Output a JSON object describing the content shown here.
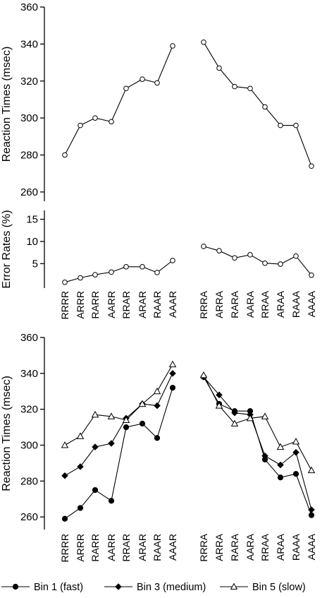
{
  "chart_data": [
    {
      "type": "line",
      "ylabel": "Reaction Times  (msec)",
      "ylim": [
        255,
        360
      ],
      "yticks": [
        260,
        280,
        300,
        320,
        340,
        360
      ],
      "categories": [
        "RRRR",
        "ARRR",
        "RARR",
        "AARR",
        "RRAR",
        "ARAR",
        "RAAR",
        "AAAR",
        "RRRA",
        "ARRA",
        "RARA",
        "AARA",
        "RRAA",
        "ARAA",
        "RAAA",
        "AAAA"
      ],
      "series": [
        {
          "marker": "open-circle",
          "values": [
            280,
            296,
            300,
            298,
            316,
            321,
            319,
            339,
            341,
            327,
            317,
            316,
            306,
            296,
            296,
            274
          ]
        }
      ]
    },
    {
      "type": "line",
      "ylabel": "Error Rates (%)",
      "ylim": [
        -0.5,
        17
      ],
      "yticks": [
        5,
        10,
        15
      ],
      "categories": [
        "RRRR",
        "ARRR",
        "RARR",
        "AARR",
        "RRAR",
        "ARAR",
        "RAAR",
        "AAAR",
        "RRRA",
        "ARRA",
        "RARA",
        "AARA",
        "RRAA",
        "ARAA",
        "RAAA",
        "AAAA"
      ],
      "series": [
        {
          "marker": "open-circle",
          "values": [
            0.8,
            1.8,
            2.5,
            3.1,
            4.3,
            4.3,
            3.0,
            5.7,
            8.9,
            7.9,
            6.3,
            7.0,
            5.1,
            4.9,
            6.7,
            2.4
          ]
        }
      ]
    },
    {
      "type": "line",
      "ylabel": "Reaction Times  (msec)",
      "ylim": [
        253,
        360
      ],
      "yticks": [
        260,
        280,
        300,
        320,
        340,
        360
      ],
      "categories": [
        "RRRR",
        "ARRR",
        "RARR",
        "AARR",
        "RRAR",
        "ARAR",
        "RAAR",
        "AAAR",
        "RRRA",
        "ARRA",
        "RARA",
        "AARA",
        "RRAA",
        "ARAA",
        "RAAA",
        "AAAA"
      ],
      "series": [
        {
          "name": "Bin 1 (fast)",
          "marker": "filled-circle",
          "values": [
            259,
            265,
            275,
            269,
            310,
            312,
            304,
            332,
            338,
            323,
            319,
            319,
            292,
            282,
            284,
            261
          ]
        },
        {
          "name": "Bin 3 (medium)",
          "marker": "filled-diamond",
          "values": [
            283,
            288,
            299,
            301,
            315,
            323,
            322,
            340,
            338,
            328,
            318,
            317,
            294,
            289,
            296,
            264
          ]
        },
        {
          "name": "Bin 5 (slow)",
          "marker": "open-triangle",
          "values": [
            300,
            305,
            317,
            316,
            314,
            323,
            330,
            345,
            339,
            322,
            312,
            315,
            316,
            299,
            302,
            286
          ]
        }
      ]
    }
  ]
}
